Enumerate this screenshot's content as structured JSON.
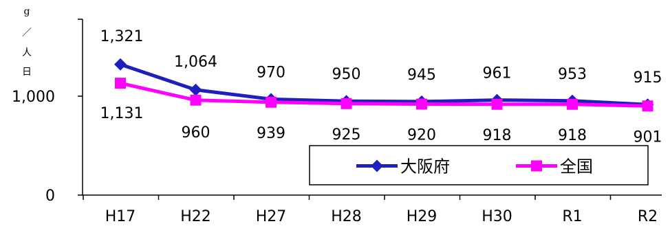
{
  "chart_data": {
    "type": "line",
    "categories": [
      "H17",
      "H22",
      "H27",
      "H28",
      "H29",
      "H30",
      "R1",
      "R2"
    ],
    "series": [
      {
        "name": "大阪府",
        "values": [
          1321,
          1064,
          970,
          950,
          945,
          961,
          953,
          915
        ],
        "labels": [
          "1,321",
          "1,064",
          "970",
          "950",
          "945",
          "961",
          "953",
          "915"
        ],
        "color": "#1f1fbf",
        "marker": "diamond"
      },
      {
        "name": "全国",
        "values": [
          1131,
          960,
          939,
          925,
          920,
          918,
          918,
          901
        ],
        "labels": [
          "1,131",
          "960",
          "939",
          "925",
          "920",
          "918",
          "918",
          "901"
        ],
        "color": "#ff00ff",
        "marker": "square"
      }
    ],
    "ylabel": [
      "g",
      "／",
      "人",
      "日"
    ],
    "yticks": [
      0,
      1000
    ],
    "ytick_labels": [
      "0",
      "1,000"
    ],
    "ylim": [
      0,
      2000
    ],
    "grid": false,
    "legend": "bottom-right"
  }
}
